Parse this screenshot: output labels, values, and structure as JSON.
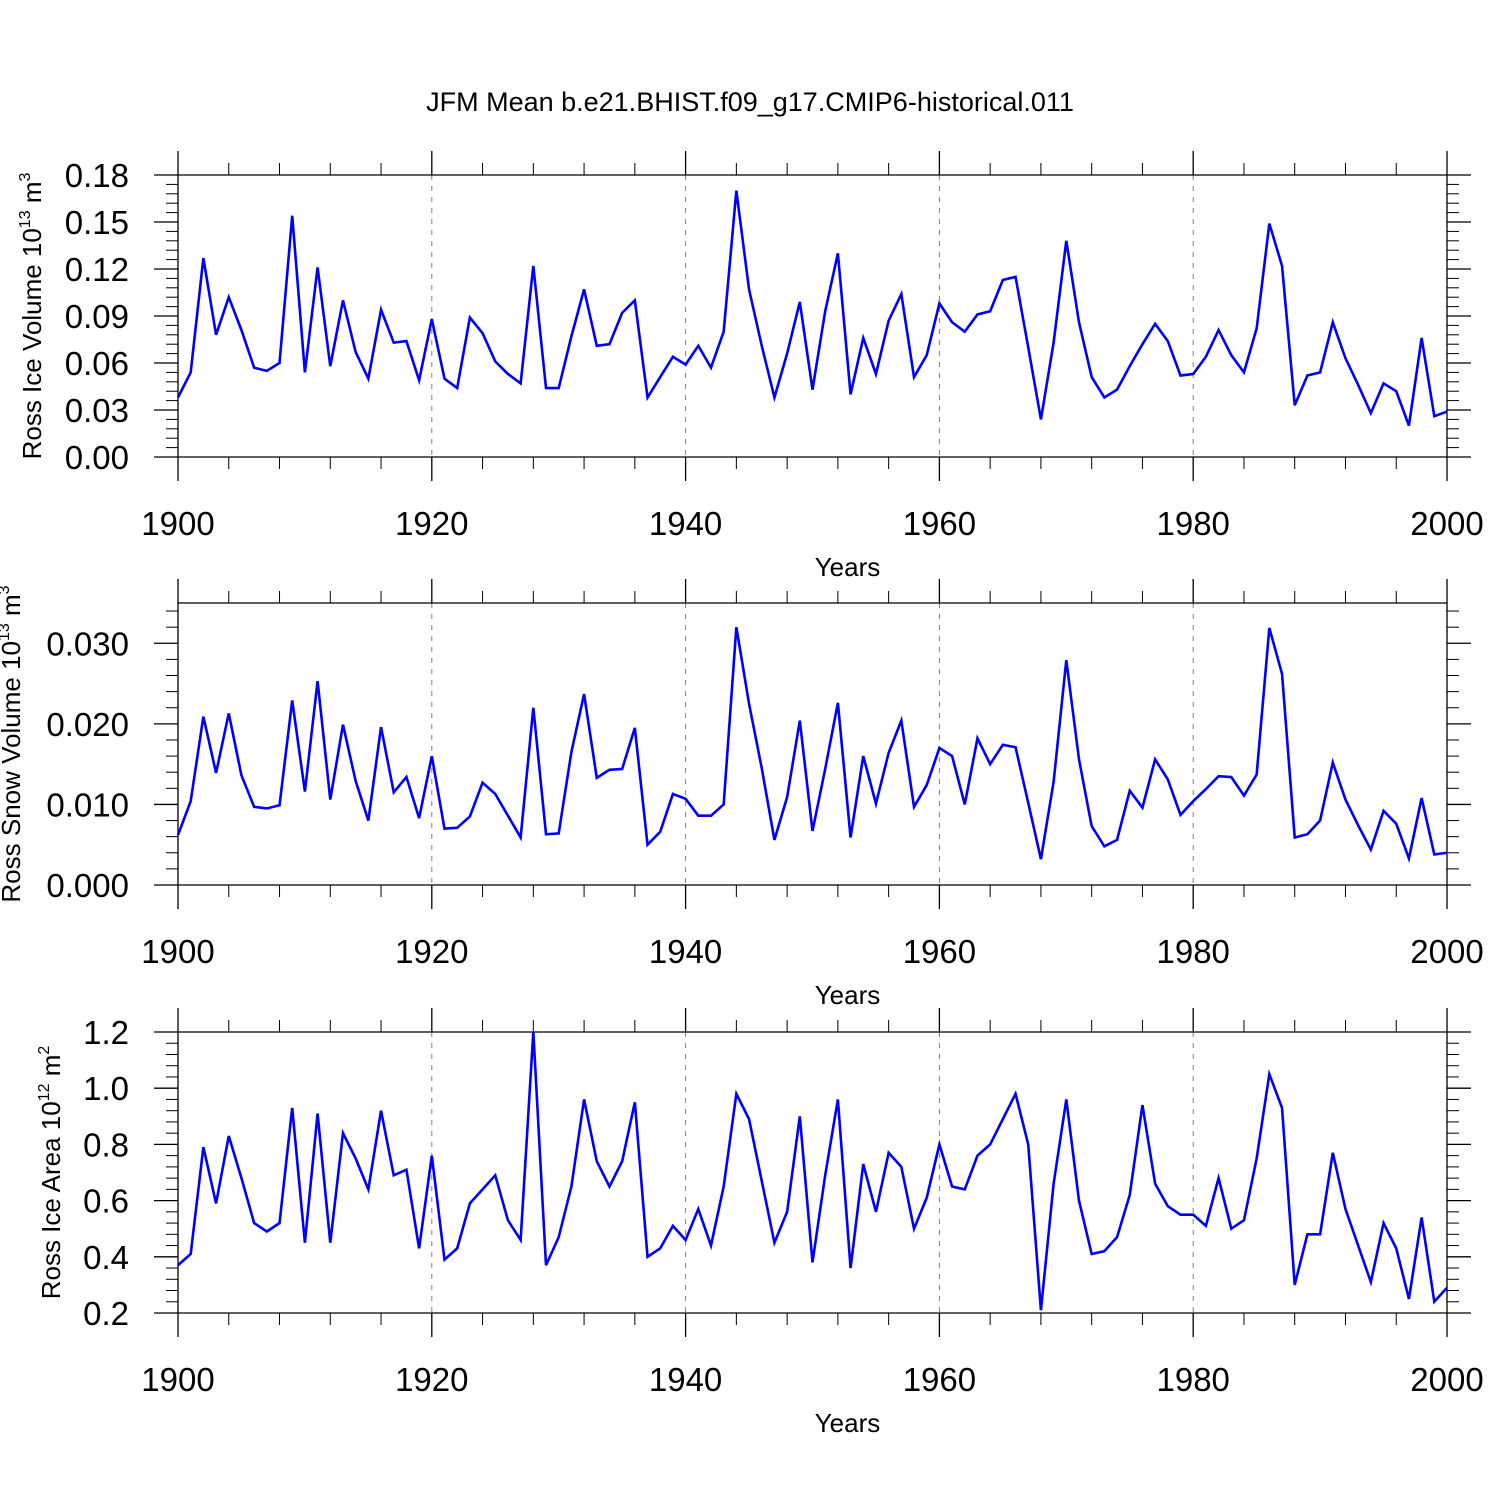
{
  "title": "JFM Mean b.e21.BHIST.f09_g17.CMIP6-historical.011",
  "colors": {
    "series": "#0000ff",
    "axis": "#000000",
    "grid": "#808080"
  },
  "chart_data": [
    {
      "type": "line",
      "xlabel": "Years",
      "ylabel": {
        "text": "Ross Ice Volume 10",
        "sup1": "13",
        "unit": " m",
        "sup2": "3"
      },
      "xlim": [
        1900,
        2000
      ],
      "ylim": [
        0,
        0.18
      ],
      "xticks": [
        1900,
        1920,
        1940,
        1960,
        1980,
        2000
      ],
      "xtick_labels": [
        "1900",
        "1920",
        "1940",
        "1960",
        "1980",
        "2000"
      ],
      "yticks": [
        0,
        0.03,
        0.06,
        0.09,
        0.12,
        0.15,
        0.18
      ],
      "ytick_labels": [
        "0.00",
        "0.03",
        "0.06",
        "0.09",
        "0.12",
        "0.15",
        "0.18"
      ],
      "grid_x": [
        1920,
        1940,
        1960,
        1980
      ],
      "series": [
        {
          "name": "Ross Ice Volume",
          "x_start": 1900,
          "values": [
            0.038,
            0.054,
            0.127,
            0.078,
            0.102,
            0.081,
            0.057,
            0.055,
            0.06,
            0.154,
            0.054,
            0.121,
            0.058,
            0.1,
            0.067,
            0.05,
            0.094,
            0.073,
            0.074,
            0.049,
            0.088,
            0.05,
            0.044,
            0.089,
            0.079,
            0.061,
            0.053,
            0.047,
            0.122,
            0.044,
            0.044,
            0.077,
            0.107,
            0.071,
            0.072,
            0.092,
            0.1,
            0.038,
            0.051,
            0.064,
            0.059,
            0.071,
            0.057,
            0.08,
            0.17,
            0.107,
            0.071,
            0.038,
            0.066,
            0.099,
            0.043,
            0.093,
            0.13,
            0.04,
            0.076,
            0.053,
            0.087,
            0.104,
            0.051,
            0.065,
            0.098,
            0.086,
            0.08,
            0.091,
            0.093,
            0.113,
            0.115,
            0.07,
            0.024,
            0.073,
            0.138,
            0.086,
            0.051,
            0.038,
            0.043,
            0.058,
            0.072,
            0.085,
            0.074,
            0.052,
            0.053,
            0.064,
            0.081,
            0.065,
            0.054,
            0.082,
            0.149,
            0.122,
            0.033,
            0.052,
            0.054,
            0.086,
            0.063,
            0.046,
            0.028,
            0.047,
            0.042,
            0.02,
            0.076,
            0.026,
            0.029
          ]
        }
      ]
    },
    {
      "type": "line",
      "xlabel": "Years",
      "ylabel": {
        "text": "Ross Snow Volume 10",
        "sup1": "13",
        "unit": " m",
        "sup2": "3"
      },
      "xlim": [
        1900,
        2000
      ],
      "ylim": [
        0,
        0.035
      ],
      "xticks": [
        1900,
        1920,
        1940,
        1960,
        1980,
        2000
      ],
      "xtick_labels": [
        "1900",
        "1920",
        "1940",
        "1960",
        "1980",
        "2000"
      ],
      "yticks": [
        0,
        0.01,
        0.02,
        0.03
      ],
      "ytick_labels": [
        "0.000",
        "0.010",
        "0.020",
        "0.030"
      ],
      "grid_x": [
        1920,
        1940,
        1960,
        1980
      ],
      "series": [
        {
          "name": "Ross Snow Volume",
          "x_start": 1900,
          "values": [
            0.0062,
            0.0104,
            0.0209,
            0.0139,
            0.0213,
            0.0136,
            0.0097,
            0.0095,
            0.0099,
            0.0229,
            0.0116,
            0.0253,
            0.0106,
            0.0199,
            0.0129,
            0.008,
            0.0196,
            0.0115,
            0.0134,
            0.0083,
            0.016,
            0.007,
            0.0071,
            0.0085,
            0.0127,
            0.0113,
            0.0086,
            0.0059,
            0.022,
            0.0063,
            0.0064,
            0.0165,
            0.0237,
            0.0133,
            0.0143,
            0.0144,
            0.0195,
            0.005,
            0.0066,
            0.0113,
            0.0107,
            0.0086,
            0.0086,
            0.01,
            0.032,
            0.0225,
            0.0145,
            0.0056,
            0.0109,
            0.0204,
            0.0067,
            0.0144,
            0.0226,
            0.0059,
            0.016,
            0.0101,
            0.0164,
            0.0204,
            0.0097,
            0.0124,
            0.017,
            0.016,
            0.01,
            0.0182,
            0.015,
            0.0174,
            0.0171,
            0.0102,
            0.0032,
            0.0128,
            0.0279,
            0.0156,
            0.0073,
            0.0048,
            0.0056,
            0.0117,
            0.0096,
            0.0156,
            0.0131,
            0.0087,
            0.0104,
            0.0119,
            0.0135,
            0.0134,
            0.0111,
            0.0137,
            0.0319,
            0.0262,
            0.0059,
            0.0063,
            0.008,
            0.0152,
            0.0106,
            0.0074,
            0.0044,
            0.0092,
            0.0076,
            0.0033,
            0.0108,
            0.0038,
            0.004
          ]
        }
      ]
    },
    {
      "type": "line",
      "xlabel": "Years",
      "ylabel": {
        "text": "Ross Ice Area 10",
        "sup1": "12",
        "unit": " m",
        "sup2": "2"
      },
      "xlim": [
        1900,
        2000
      ],
      "ylim": [
        0.2,
        1.2
      ],
      "xticks": [
        1900,
        1920,
        1940,
        1960,
        1980,
        2000
      ],
      "xtick_labels": [
        "1900",
        "1920",
        "1940",
        "1960",
        "1980",
        "2000"
      ],
      "yticks": [
        0.2,
        0.4,
        0.6,
        0.8,
        1.0,
        1.2
      ],
      "ytick_labels": [
        "0.2",
        "0.4",
        "0.6",
        "0.8",
        "1.0",
        "1.2"
      ],
      "grid_x": [
        1920,
        1940,
        1960,
        1980
      ],
      "series": [
        {
          "name": "Ross Ice Area",
          "x_start": 1900,
          "values": [
            0.37,
            0.41,
            0.79,
            0.59,
            0.83,
            0.68,
            0.52,
            0.49,
            0.52,
            0.93,
            0.45,
            0.91,
            0.45,
            0.84,
            0.75,
            0.64,
            0.92,
            0.69,
            0.71,
            0.43,
            0.76,
            0.39,
            0.43,
            0.59,
            0.64,
            0.69,
            0.53,
            0.46,
            1.2,
            0.37,
            0.47,
            0.65,
            0.96,
            0.74,
            0.65,
            0.74,
            0.95,
            0.4,
            0.43,
            0.51,
            0.46,
            0.57,
            0.44,
            0.65,
            0.98,
            0.89,
            0.67,
            0.45,
            0.56,
            0.9,
            0.38,
            0.69,
            0.96,
            0.36,
            0.73,
            0.56,
            0.77,
            0.72,
            0.5,
            0.61,
            0.8,
            0.65,
            0.64,
            0.76,
            0.8,
            0.89,
            0.98,
            0.8,
            0.21,
            0.66,
            0.96,
            0.6,
            0.41,
            0.42,
            0.47,
            0.62,
            0.94,
            0.66,
            0.58,
            0.55,
            0.55,
            0.51,
            0.68,
            0.5,
            0.53,
            0.75,
            1.05,
            0.93,
            0.3,
            0.48,
            0.48,
            0.77,
            0.57,
            0.44,
            0.31,
            0.52,
            0.43,
            0.25,
            0.54,
            0.24,
            0.29
          ]
        }
      ]
    }
  ]
}
